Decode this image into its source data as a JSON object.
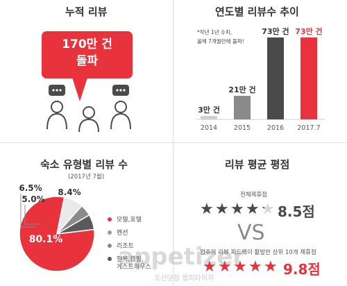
{
  "colors": {
    "accent": "#e8323c",
    "dark": "#4a4a4a",
    "mid": "#8a8a8a",
    "light": "#cfcfcf",
    "text": "#333333"
  },
  "cumulative": {
    "title": "누적 리뷰",
    "bubble_line1": "170만 건",
    "bubble_line2": "돌파"
  },
  "yearly": {
    "title": "연도별 리뷰수 추이",
    "note_line1": "*작년 1년 수치,",
    "note_line2": "올해 7개월만에 돌파!"
  },
  "accommodation": {
    "title": "숙소 유형별 리뷰 수",
    "subtitle": "(2017년 7월)"
  },
  "rating": {
    "title": "리뷰 평균 평점",
    "all_label": "전체제휴점",
    "all_score": "8.5점",
    "vs": "VS",
    "top_label": "업주의 리뷰 피드백이 활발한 상위 10개 제휴점",
    "top_score": "9.8점",
    "all_stars": 4.25,
    "top_stars": 4.9
  },
  "watermark": {
    "line1": "appetizer",
    "line2": "조선닷컴 앱피타이저"
  },
  "icons": [
    "chat-bubble-icon",
    "person-icon",
    "star-icon"
  ],
  "chart_data": [
    {
      "type": "bar",
      "title": "연도별 리뷰수 추이",
      "categories": [
        "2014",
        "2015",
        "2016",
        "2017.7"
      ],
      "values": [
        3,
        21,
        73,
        73
      ],
      "value_labels": [
        "3만 건",
        "21만 건",
        "73만 건",
        "73만 건"
      ],
      "colors": [
        "#cfcfcf",
        "#8a8a8a",
        "#4a4a4a",
        "#e8323c"
      ],
      "unit": "만 건",
      "ylim": [
        0,
        80
      ]
    },
    {
      "type": "pie",
      "title": "숙소 유형별 리뷰 수",
      "subtitle": "(2017년 7월)",
      "labels": [
        "모텔,호텔",
        "펜션",
        "리조트",
        "한옥,캠핑, 게스트하우스"
      ],
      "values": [
        80.1,
        8.4,
        5.0,
        6.5
      ],
      "value_labels": [
        "80.1%",
        "8.4%",
        "5.0%",
        "6.5%"
      ],
      "colors": [
        "#e8323c",
        "#e9e9e9",
        "#8a8a8a",
        "#5a5a5a"
      ],
      "legend_position": "right"
    }
  ]
}
